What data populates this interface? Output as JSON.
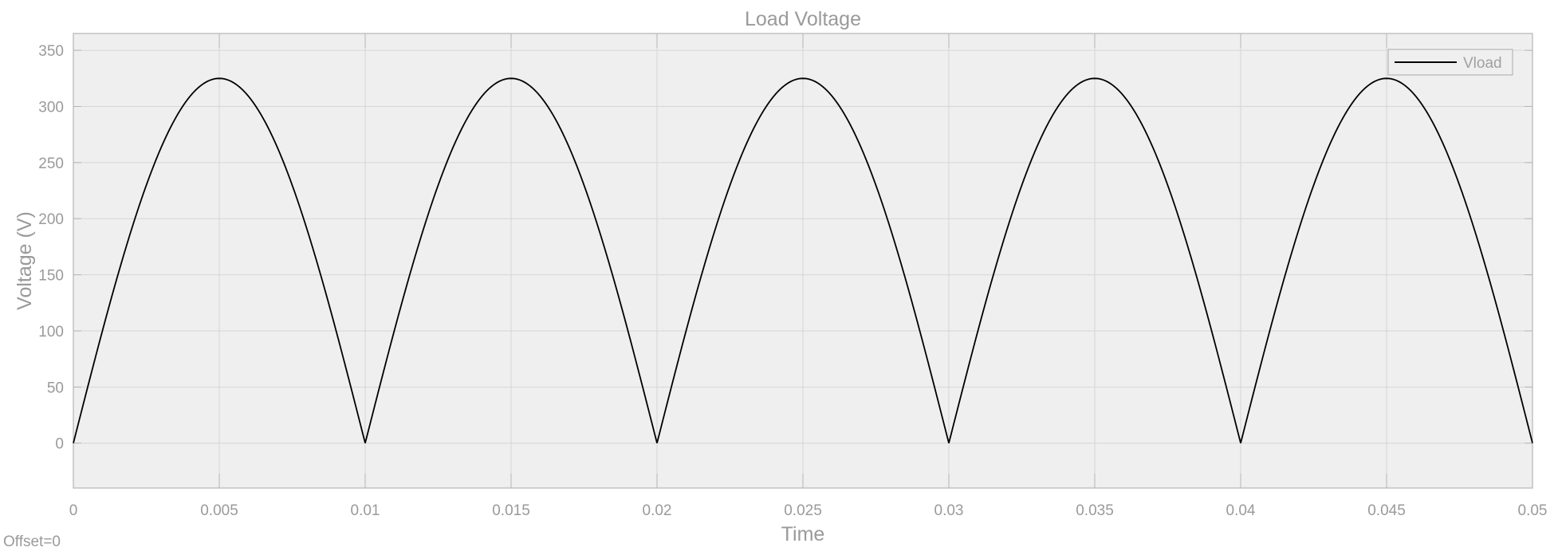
{
  "chart_data": {
    "type": "line",
    "title": "Load Voltage",
    "xlabel": "Time",
    "ylabel": "Voltage (V)",
    "xlim": [
      0,
      0.05
    ],
    "ylim": [
      -40,
      365
    ],
    "x_ticks": [
      "0",
      "0.005",
      "0.01",
      "0.015",
      "0.02",
      "0.025",
      "0.03",
      "0.035",
      "0.04",
      "0.045",
      "0.05"
    ],
    "y_ticks": [
      "0",
      "50",
      "100",
      "150",
      "200",
      "250",
      "300",
      "350"
    ],
    "grid": true,
    "legend_position": "top-right",
    "footnote": "Offset=0",
    "series": [
      {
        "name": "Vload",
        "color": "#000000",
        "x": [
          0,
          0.00125,
          0.0025,
          0.00375,
          0.005,
          0.00625,
          0.0075,
          0.00875,
          0.01,
          0.01125,
          0.0125,
          0.01375,
          0.015,
          0.01625,
          0.0175,
          0.01875,
          0.02,
          0.02125,
          0.0225,
          0.02375,
          0.025,
          0.02625,
          0.0275,
          0.02875,
          0.03,
          0.03125,
          0.0325,
          0.03375,
          0.035,
          0.03625,
          0.0375,
          0.03875,
          0.04,
          0.04125,
          0.0425,
          0.04375,
          0.045,
          0.04625,
          0.0475,
          0.04875,
          0.05
        ],
        "values": [
          0,
          124.4,
          229.8,
          300.3,
          325,
          300.3,
          229.8,
          124.4,
          0,
          124.4,
          229.8,
          300.3,
          325,
          300.3,
          229.8,
          124.4,
          0,
          124.4,
          229.8,
          300.3,
          325,
          300.3,
          229.8,
          124.4,
          0,
          124.4,
          229.8,
          300.3,
          325,
          300.3,
          229.8,
          124.4,
          0,
          124.4,
          229.8,
          300.3,
          325,
          300.3,
          229.8,
          124.4,
          0
        ]
      }
    ],
    "colors": {
      "plot_background": "#efefef",
      "grid": "#d6d6d6",
      "text": "#9a9a9a",
      "axes": "#b5b5b5"
    }
  }
}
